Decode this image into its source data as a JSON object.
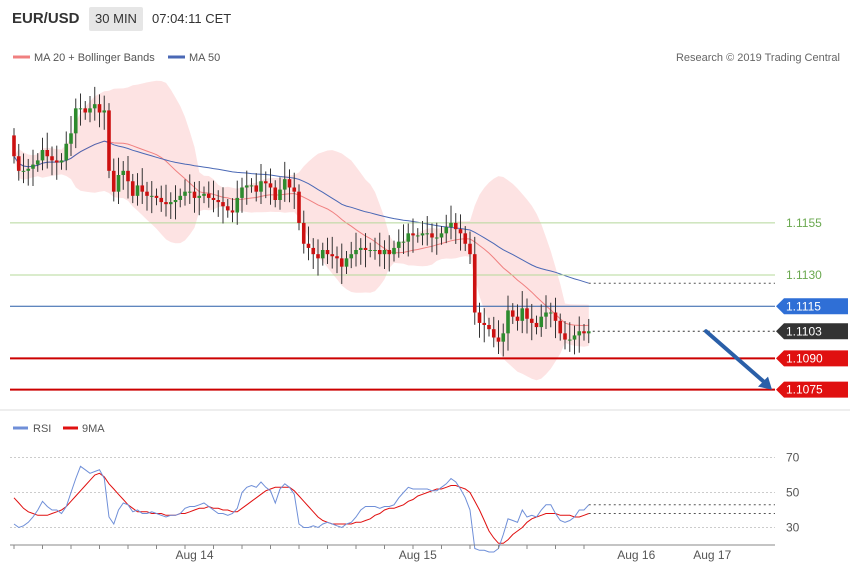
{
  "header": {
    "symbol": "EUR/USD",
    "timeframe": "30 MIN",
    "time": "07:04:11 CET"
  },
  "legend": {
    "ma_bb": "MA 20 + Bollinger Bands",
    "ma50": "MA 50",
    "credit": "Research © 2019 Trading Central",
    "rsi": "RSI",
    "rsi_ma": "9MA"
  },
  "colors": {
    "bull": "#2e8b2e",
    "bear": "#cc1111",
    "band_fill": "#fde3e3",
    "ma20": "#f08080",
    "ma50": "#4a68b5",
    "support_line": "#cc0000",
    "pivot_line": "#2a5fa8",
    "green_level": "#b5d89a",
    "rsi_line": "#6f8fd8",
    "rsi_ma_line": "#e01010",
    "arrow": "#2a5fa8"
  },
  "chart_data": [
    {
      "type": "candlestick",
      "title": "EUR/USD 30 MIN",
      "y_axis_side": "right",
      "ylim": [
        1.107,
        1.1226
      ],
      "yticks": [
        1.113,
        1.1155
      ],
      "xticks": [
        "Aug 14",
        "Aug 15",
        "Aug 16",
        "Aug 17"
      ],
      "grid": false,
      "legend_position": "top-left",
      "series": [
        {
          "name": "MA 20 + Bollinger Bands",
          "kind": "ma_band"
        },
        {
          "name": "MA 50",
          "kind": "ma"
        }
      ],
      "levels": [
        {
          "value": 1.1155,
          "label": "1.1155",
          "kind": "resistance"
        },
        {
          "value": 1.113,
          "label": "1.1130",
          "kind": "resistance"
        },
        {
          "value": 1.1115,
          "label": "1.1115",
          "kind": "pivot"
        },
        {
          "value": 1.1103,
          "label": "1.1103",
          "kind": "last_price"
        },
        {
          "value": 1.109,
          "label": "1.1090",
          "kind": "support"
        },
        {
          "value": 1.1075,
          "label": "1.1075",
          "kind": "support"
        }
      ],
      "forecast_arrow": {
        "from": 1.1103,
        "to": 1.1075,
        "direction": "down"
      },
      "closes": [
        1.1187,
        1.118,
        1.118,
        1.1181,
        1.1183,
        1.1185,
        1.119,
        1.1187,
        1.1185,
        1.1184,
        1.1185,
        1.1193,
        1.1198,
        1.121,
        1.121,
        1.1208,
        1.121,
        1.1212,
        1.1208,
        1.1209,
        1.118,
        1.117,
        1.1178,
        1.118,
        1.1175,
        1.1168,
        1.1173,
        1.117,
        1.1168,
        1.1168,
        1.1167,
        1.1165,
        1.1164,
        1.1165,
        1.1166,
        1.1168,
        1.117,
        1.117,
        1.1167,
        1.1168,
        1.1169,
        1.1167,
        1.1166,
        1.1165,
        1.1163,
        1.1161,
        1.116,
        1.1167,
        1.1172,
        1.1173,
        1.1173,
        1.117,
        1.1175,
        1.1174,
        1.1172,
        1.1166,
        1.1171,
        1.1176,
        1.1172,
        1.117,
        1.1155,
        1.1145,
        1.1143,
        1.114,
        1.1138,
        1.1142,
        1.114,
        1.1139,
        1.1138,
        1.1134,
        1.1138,
        1.114,
        1.1142,
        1.1143,
        1.1142,
        1.1142,
        1.1142,
        1.114,
        1.1142,
        1.114,
        1.1143,
        1.1146,
        1.1146,
        1.115,
        1.1149,
        1.1149,
        1.115,
        1.115,
        1.1148,
        1.1148,
        1.115,
        1.1153,
        1.1155,
        1.1152,
        1.115,
        1.1145,
        1.114,
        1.1112,
        1.1107,
        1.1106,
        1.1104,
        1.11,
        1.1098,
        1.1102,
        1.1113,
        1.111,
        1.1108,
        1.1114,
        1.1109,
        1.1107,
        1.1105,
        1.111,
        1.1112,
        1.1112,
        1.1108,
        1.1102,
        1.1099,
        1.1099,
        1.1101,
        1.1103,
        1.1102,
        1.1103
      ]
    },
    {
      "type": "line",
      "title": "RSI",
      "ylim": [
        20,
        80
      ],
      "yticks": [
        30,
        50,
        70
      ],
      "xticks": [
        "Aug 14",
        "Aug 15",
        "Aug 16",
        "Aug 17"
      ],
      "grid": true,
      "legend_position": "top-left",
      "series": [
        {
          "name": "RSI",
          "values": [
            32,
            30,
            31,
            33,
            36,
            40,
            45,
            42,
            40,
            40,
            38,
            42,
            50,
            58,
            65,
            63,
            61,
            62,
            63,
            58,
            36,
            32,
            40,
            44,
            43,
            39,
            40,
            38,
            38,
            39,
            38,
            37,
            36,
            37,
            37,
            38,
            41,
            42,
            42,
            43,
            44,
            42,
            40,
            38,
            38,
            37,
            38,
            41,
            50,
            53,
            54,
            53,
            56,
            53,
            51,
            44,
            52,
            55,
            53,
            49,
            32,
            30,
            30,
            31,
            30,
            32,
            33,
            32,
            31,
            30,
            32,
            33,
            36,
            40,
            42,
            42,
            42,
            41,
            42,
            42,
            43,
            47,
            50,
            53,
            52,
            52,
            52,
            52,
            51,
            51,
            53,
            55,
            58,
            56,
            52,
            47,
            40,
            18,
            17,
            17,
            16,
            16,
            18,
            26,
            35,
            34,
            33,
            40,
            36,
            37,
            36,
            40,
            43,
            43,
            38,
            34,
            33,
            34,
            36,
            40,
            40,
            43
          ]
        },
        {
          "name": "9MA",
          "values": [
            47,
            44,
            41,
            39,
            38,
            37,
            37,
            37,
            38,
            39,
            40,
            42,
            45,
            48,
            51,
            54,
            57,
            60,
            61,
            59,
            55,
            52,
            49,
            46,
            43,
            41,
            39,
            39,
            39,
            38,
            38,
            38,
            37,
            37,
            37,
            38,
            38,
            39,
            40,
            41,
            41,
            42,
            41,
            41,
            40,
            40,
            39,
            39,
            41,
            43,
            45,
            47,
            49,
            51,
            52,
            53,
            53,
            53,
            53,
            51,
            48,
            45,
            42,
            39,
            36,
            34,
            33,
            32,
            32,
            32,
            32,
            32,
            33,
            33,
            34,
            35,
            37,
            38,
            40,
            41,
            41,
            42,
            43,
            45,
            46,
            48,
            49,
            50,
            51,
            52,
            52,
            53,
            54,
            54,
            53,
            52,
            50,
            45,
            40,
            34,
            28,
            24,
            21,
            21,
            23,
            26,
            28,
            30,
            33,
            35,
            36,
            37,
            38,
            38,
            38,
            37,
            37,
            37,
            36,
            36,
            37,
            38
          ]
        }
      ],
      "last_values": {
        "rsi": 43,
        "rsi_ma": 38
      }
    }
  ]
}
